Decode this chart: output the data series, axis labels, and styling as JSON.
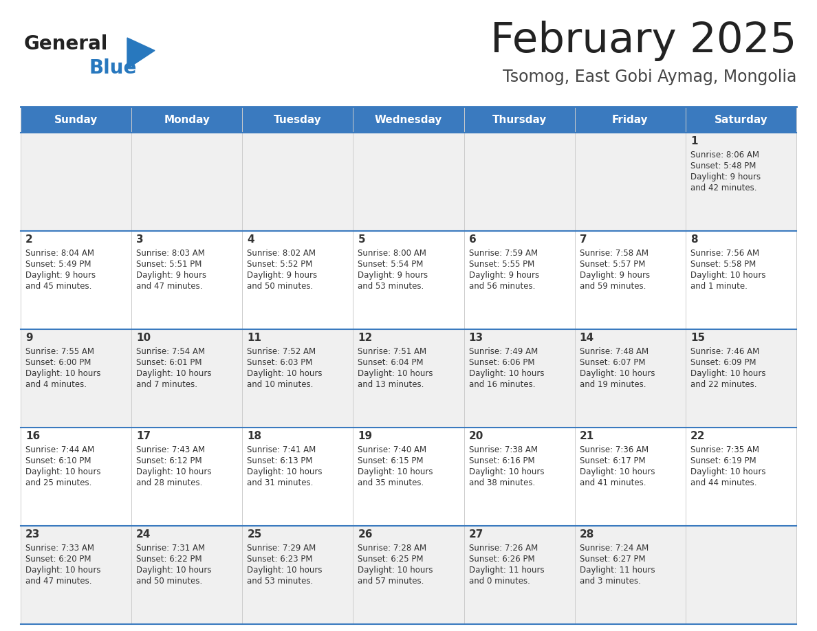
{
  "title": "February 2025",
  "subtitle": "Tsomog, East Gobi Aymag, Mongolia",
  "days_of_week": [
    "Sunday",
    "Monday",
    "Tuesday",
    "Wednesday",
    "Thursday",
    "Friday",
    "Saturday"
  ],
  "header_bg": "#3a7abf",
  "header_text": "#ffffff",
  "odd_row_bg": "#f0f0f0",
  "even_row_bg": "#ffffff",
  "border_color": "#3a7abf",
  "day_num_color": "#333333",
  "cell_text_color": "#333333",
  "title_color": "#222222",
  "subtitle_color": "#444444",
  "logo_general_color": "#222222",
  "logo_blue_color": "#2878be",
  "calendar_data": [
    [
      null,
      null,
      null,
      null,
      null,
      null,
      {
        "day": 1,
        "sunrise": "8:06 AM",
        "sunset": "5:48 PM",
        "daylight": "9 hours and 42 minutes."
      }
    ],
    [
      {
        "day": 2,
        "sunrise": "8:04 AM",
        "sunset": "5:49 PM",
        "daylight": "9 hours and 45 minutes."
      },
      {
        "day": 3,
        "sunrise": "8:03 AM",
        "sunset": "5:51 PM",
        "daylight": "9 hours and 47 minutes."
      },
      {
        "day": 4,
        "sunrise": "8:02 AM",
        "sunset": "5:52 PM",
        "daylight": "9 hours and 50 minutes."
      },
      {
        "day": 5,
        "sunrise": "8:00 AM",
        "sunset": "5:54 PM",
        "daylight": "9 hours and 53 minutes."
      },
      {
        "day": 6,
        "sunrise": "7:59 AM",
        "sunset": "5:55 PM",
        "daylight": "9 hours and 56 minutes."
      },
      {
        "day": 7,
        "sunrise": "7:58 AM",
        "sunset": "5:57 PM",
        "daylight": "9 hours and 59 minutes."
      },
      {
        "day": 8,
        "sunrise": "7:56 AM",
        "sunset": "5:58 PM",
        "daylight": "10 hours and 1 minute."
      }
    ],
    [
      {
        "day": 9,
        "sunrise": "7:55 AM",
        "sunset": "6:00 PM",
        "daylight": "10 hours and 4 minutes."
      },
      {
        "day": 10,
        "sunrise": "7:54 AM",
        "sunset": "6:01 PM",
        "daylight": "10 hours and 7 minutes."
      },
      {
        "day": 11,
        "sunrise": "7:52 AM",
        "sunset": "6:03 PM",
        "daylight": "10 hours and 10 minutes."
      },
      {
        "day": 12,
        "sunrise": "7:51 AM",
        "sunset": "6:04 PM",
        "daylight": "10 hours and 13 minutes."
      },
      {
        "day": 13,
        "sunrise": "7:49 AM",
        "sunset": "6:06 PM",
        "daylight": "10 hours and 16 minutes."
      },
      {
        "day": 14,
        "sunrise": "7:48 AM",
        "sunset": "6:07 PM",
        "daylight": "10 hours and 19 minutes."
      },
      {
        "day": 15,
        "sunrise": "7:46 AM",
        "sunset": "6:09 PM",
        "daylight": "10 hours and 22 minutes."
      }
    ],
    [
      {
        "day": 16,
        "sunrise": "7:44 AM",
        "sunset": "6:10 PM",
        "daylight": "10 hours and 25 minutes."
      },
      {
        "day": 17,
        "sunrise": "7:43 AM",
        "sunset": "6:12 PM",
        "daylight": "10 hours and 28 minutes."
      },
      {
        "day": 18,
        "sunrise": "7:41 AM",
        "sunset": "6:13 PM",
        "daylight": "10 hours and 31 minutes."
      },
      {
        "day": 19,
        "sunrise": "7:40 AM",
        "sunset": "6:15 PM",
        "daylight": "10 hours and 35 minutes."
      },
      {
        "day": 20,
        "sunrise": "7:38 AM",
        "sunset": "6:16 PM",
        "daylight": "10 hours and 38 minutes."
      },
      {
        "day": 21,
        "sunrise": "7:36 AM",
        "sunset": "6:17 PM",
        "daylight": "10 hours and 41 minutes."
      },
      {
        "day": 22,
        "sunrise": "7:35 AM",
        "sunset": "6:19 PM",
        "daylight": "10 hours and 44 minutes."
      }
    ],
    [
      {
        "day": 23,
        "sunrise": "7:33 AM",
        "sunset": "6:20 PM",
        "daylight": "10 hours and 47 minutes."
      },
      {
        "day": 24,
        "sunrise": "7:31 AM",
        "sunset": "6:22 PM",
        "daylight": "10 hours and 50 minutes."
      },
      {
        "day": 25,
        "sunrise": "7:29 AM",
        "sunset": "6:23 PM",
        "daylight": "10 hours and 53 minutes."
      },
      {
        "day": 26,
        "sunrise": "7:28 AM",
        "sunset": "6:25 PM",
        "daylight": "10 hours and 57 minutes."
      },
      {
        "day": 27,
        "sunrise": "7:26 AM",
        "sunset": "6:26 PM",
        "daylight": "11 hours and 0 minutes."
      },
      {
        "day": 28,
        "sunrise": "7:24 AM",
        "sunset": "6:27 PM",
        "daylight": "11 hours and 3 minutes."
      },
      null
    ]
  ]
}
